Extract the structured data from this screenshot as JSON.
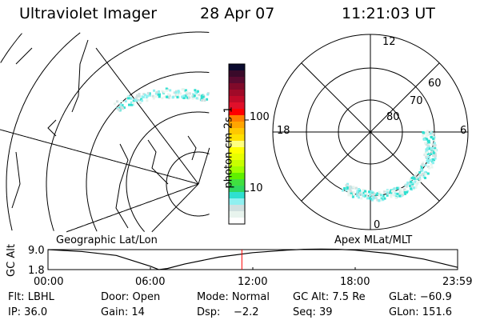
{
  "header": {
    "instrument": "Ultraviolet Imager",
    "date": "28 Apr 07",
    "time": "11:21:03 UT"
  },
  "colorbar": {
    "label": "photon cm-2s-1",
    "ticks": [
      "100",
      "10"
    ],
    "scale": "log",
    "colors": [
      "#0a0a2e",
      "#3a0a2a",
      "#5a0a30",
      "#800a2a",
      "#a00a28",
      "#c00a28",
      "#e0102a",
      "#ff0000",
      "#ff8000",
      "#ffa500",
      "#ffc800",
      "#ffe000",
      "#ffff80",
      "#ffff00",
      "#e8ff00",
      "#c8ff00",
      "#a0ff00",
      "#60f000",
      "#40e040",
      "#30d860",
      "#30e0d0",
      "#90f0f0",
      "#d0e0e0",
      "#e8f4ee",
      "#ffffff"
    ]
  },
  "geo_panel": {
    "label": "Geographic Lat/Lon"
  },
  "polar_panel": {
    "label": "Apex MLat/MLT",
    "mlt_labels": {
      "top": "12",
      "bottom": "0",
      "left": "18",
      "right": "6"
    },
    "lat_labels": [
      "80",
      "70",
      "60"
    ]
  },
  "chart_data": {
    "type": "line",
    "ylabel": "GC Alt",
    "yticks": [
      "9.0",
      "1.8"
    ],
    "ylim": [
      1.8,
      9.0
    ],
    "xticks": [
      "00:00",
      "06:00",
      "12:00",
      "18:00",
      "23:59"
    ],
    "x_hours": [
      0,
      2,
      4,
      6,
      6.5,
      7,
      8,
      10,
      12,
      14,
      15,
      16,
      17,
      18,
      20,
      22,
      24
    ],
    "y": [
      9.0,
      8.3,
      6.9,
      3.0,
      1.8,
      2.2,
      3.8,
      6.3,
      7.9,
      8.8,
      9.1,
      9.2,
      9.1,
      8.8,
      7.6,
      5.6,
      2.6
    ],
    "current_time_hours": 11.36,
    "current_marker_color": "#ff0000"
  },
  "status": {
    "row1": [
      "Flt: LBHL",
      "Door: Open",
      "Mode: Normal",
      "GC Alt: 7.5 Re",
      "GLat: −60.9"
    ],
    "row2": [
      "IP: 36.0",
      "Gain: 14",
      "Dsp:    −2.2",
      "Seq: 39",
      "GLon: 151.6"
    ]
  }
}
